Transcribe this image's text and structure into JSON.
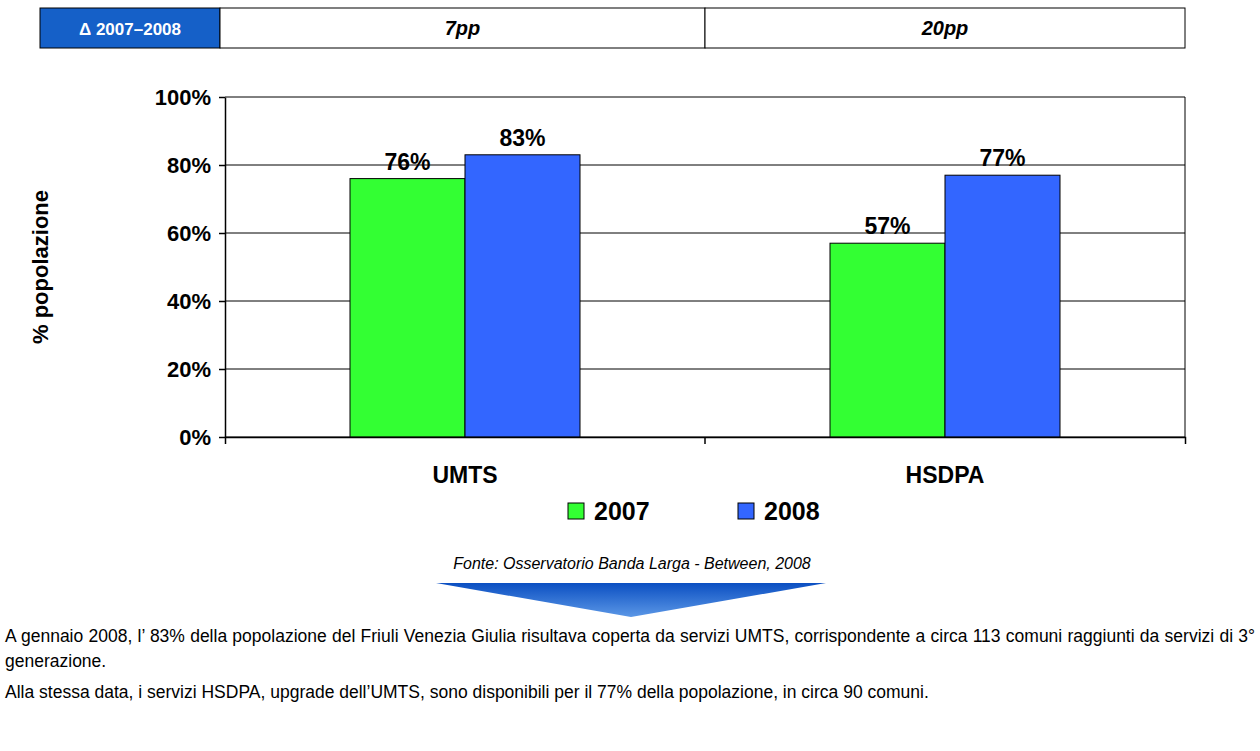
{
  "chart_data": {
    "type": "bar",
    "delta_header": "Δ 2007–2008",
    "delta_labels": [
      "7pp",
      "20pp"
    ],
    "y_label": "% popolazione",
    "categories": [
      "UMTS",
      "HSDPA"
    ],
    "series": [
      {
        "name": "2007",
        "color": "#33ff33",
        "values": [
          76,
          57
        ],
        "value_labels": [
          "76%",
          "57%"
        ]
      },
      {
        "name": "2008",
        "color": "#3366ff",
        "values": [
          83,
          77
        ],
        "value_labels": [
          "83%",
          "77%"
        ]
      }
    ],
    "ylim": [
      0,
      100
    ],
    "yticks": [
      {
        "value": 0,
        "label": "0%"
      },
      {
        "value": 20,
        "label": "20%"
      },
      {
        "value": 40,
        "label": "40%"
      },
      {
        "value": 60,
        "label": "60%"
      },
      {
        "value": 80,
        "label": "80%"
      },
      {
        "value": 100,
        "label": "100%"
      }
    ],
    "grid": true,
    "data_labels": true,
    "legend": "bottom",
    "source": "Fonte: Osservatorio Banda Larga - Between, 2008",
    "notes": [
      "A gennaio 2008, l’ 83% della popolazione del Friuli Venezia Giulia risultava coperta da servizi UMTS, corrispondente a circa 113 comuni raggiunti da servizi di 3° generazione.",
      "Alla stessa data, i servizi HSDPA, upgrade dell’UMTS, sono disponibili per il 77% della popolazione, in circa 90 comuni."
    ]
  }
}
